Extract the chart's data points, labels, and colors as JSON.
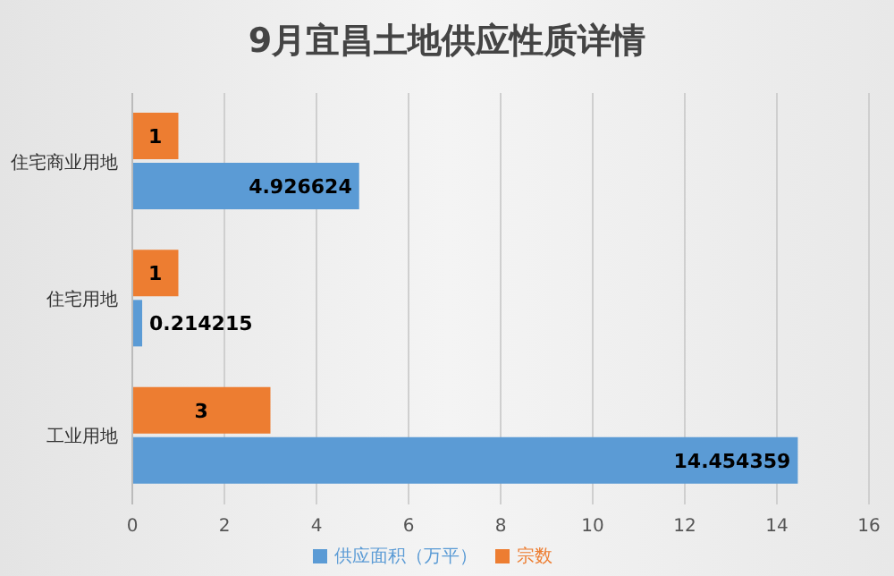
{
  "chart_data": {
    "type": "bar",
    "orientation": "horizontal",
    "title": "9月宜昌土地供应性质详情",
    "categories": [
      "住宅商业用地",
      "住宅用地",
      "工业用地"
    ],
    "series": [
      {
        "name": "宗数",
        "color": "#ed7d31",
        "values": [
          1,
          1,
          3
        ]
      },
      {
        "name": "供应面积（万平）",
        "color": "#5b9bd5",
        "values": [
          4.926624,
          0.214215,
          14.454359
        ]
      }
    ],
    "xlim": [
      0,
      16
    ],
    "xticks": [
      0,
      2,
      4,
      6,
      8,
      10,
      12,
      14,
      16
    ],
    "grid": "x",
    "legend": "bottom",
    "data_labels": true
  }
}
